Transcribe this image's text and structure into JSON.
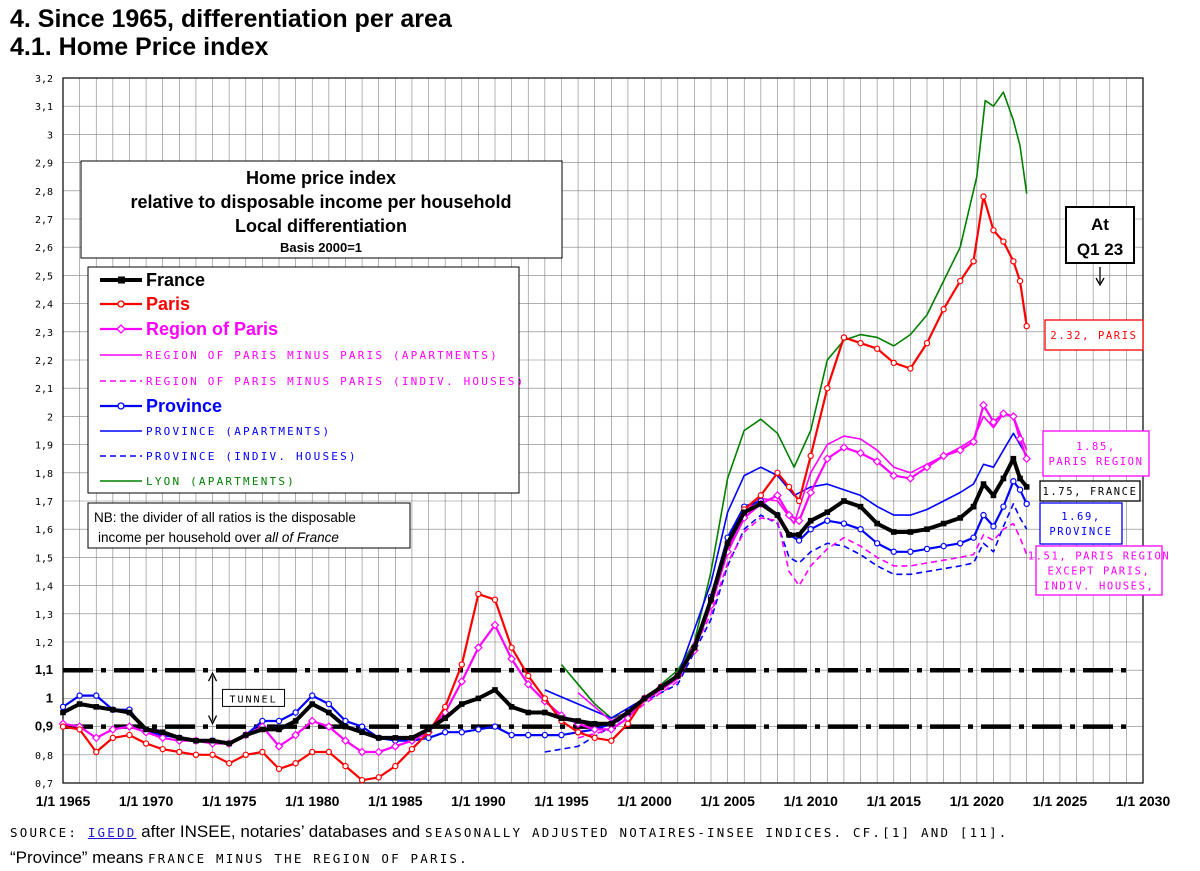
{
  "page": {
    "heading": "4. Since 1965, differentiation per area",
    "subheading": "4.1. Home Price index",
    "source_prefix": "SOURCE: ",
    "source_link": "IGEDD",
    "source_middle": " after INSEE, notaries’ databases and ",
    "source_tail": "SEASONALLY ADJUSTED NOTAIRES-INSEE INDICES. CF.[1] AND [11].",
    "province_note_prefix": "“Province” means ",
    "province_note_tail": "FRANCE MINUS THE REGION OF PARIS."
  },
  "chart_data": {
    "type": "line",
    "title": "Home price index",
    "title_lines": [
      "Home price index",
      "relative to disposable income per household",
      "Local differentiation"
    ],
    "basis": "Basis 2000=1",
    "note": [
      "NB: the divider of all ratios is the disposable",
      "income per household over ",
      "all of France"
    ],
    "xlim": [
      1965,
      2030
    ],
    "ylim": [
      0.7,
      3.2
    ],
    "x_ticks": [
      {
        "x": 1965,
        "label": "1/1 1965"
      },
      {
        "x": 1970,
        "label": "1/1 1970"
      },
      {
        "x": 1975,
        "label": "1/1 1975"
      },
      {
        "x": 1980,
        "label": "1/1 1980"
      },
      {
        "x": 1985,
        "label": "1/1 1985"
      },
      {
        "x": 1990,
        "label": "1/1 1990"
      },
      {
        "x": 1995,
        "label": "1/1 1995"
      },
      {
        "x": 2000,
        "label": "1/1 2000"
      },
      {
        "x": 2005,
        "label": "1/1 2005"
      },
      {
        "x": 2010,
        "label": "1/1 2010"
      },
      {
        "x": 2015,
        "label": "1/1 2015"
      },
      {
        "x": 2020,
        "label": "1/1 2020"
      },
      {
        "x": 2025,
        "label": "1/1 2025"
      },
      {
        "x": 2030,
        "label": "1/1 2030"
      }
    ],
    "y_ticks": [
      {
        "y": 0.7,
        "label": "0,7"
      },
      {
        "y": 0.8,
        "label": "0,8"
      },
      {
        "y": 0.9,
        "label": "0,9"
      },
      {
        "y": 1.0,
        "label": "1"
      },
      {
        "y": 1.1,
        "label": "1,1"
      },
      {
        "y": 1.2,
        "label": "1,2"
      },
      {
        "y": 1.3,
        "label": "1,3"
      },
      {
        "y": 1.4,
        "label": "1,4"
      },
      {
        "y": 1.5,
        "label": "1,5"
      },
      {
        "y": 1.6,
        "label": "1,6"
      },
      {
        "y": 1.7,
        "label": "1,7"
      },
      {
        "y": 1.8,
        "label": "1,8"
      },
      {
        "y": 1.9,
        "label": "1,9"
      },
      {
        "y": 2.0,
        "label": "2"
      },
      {
        "y": 2.1,
        "label": "2,1"
      },
      {
        "y": 2.2,
        "label": "2,2"
      },
      {
        "y": 2.3,
        "label": "2,3"
      },
      {
        "y": 2.4,
        "label": "2,4"
      },
      {
        "y": 2.5,
        "label": "2,5"
      },
      {
        "y": 2.6,
        "label": "2,6"
      },
      {
        "y": 2.7,
        "label": "2,7"
      },
      {
        "y": 2.8,
        "label": "2,8"
      },
      {
        "y": 2.9,
        "label": "2,9"
      },
      {
        "y": 3.0,
        "label": "3"
      },
      {
        "y": 3.1,
        "label": "3,1"
      },
      {
        "y": 3.2,
        "label": "3,2"
      }
    ],
    "bold_y_ticks": [
      0.9,
      1.0,
      1.1
    ],
    "tunnel": {
      "label": "TUNNEL",
      "lower": 0.9,
      "upper": 1.1,
      "x_start": 1965,
      "x_end": 2029
    },
    "at_label": [
      "At",
      "Q1 23"
    ],
    "series": [
      {
        "key": "france",
        "name": "France",
        "color": "#000000",
        "style": "bold",
        "marker": "square",
        "x": [
          1965,
          1966,
          1967,
          1968,
          1969,
          1970,
          1971,
          1972,
          1973,
          1974,
          1975,
          1976,
          1977,
          1978,
          1979,
          1980,
          1981,
          1982,
          1983,
          1984,
          1985,
          1986,
          1987,
          1988,
          1989,
          1990,
          1991,
          1992,
          1993,
          1994,
          1995,
          1996,
          1997,
          1998,
          1999,
          2000,
          2001,
          2002,
          2003,
          2004,
          2005,
          2006,
          2007,
          2008,
          2008.7,
          2009.3,
          2010,
          2011,
          2012,
          2013,
          2014,
          2015,
          2016,
          2017,
          2018,
          2019,
          2019.8,
          2020.4,
          2021,
          2021.6,
          2022.2,
          2022.6,
          2023
        ],
        "y": [
          0.95,
          0.98,
          0.97,
          0.96,
          0.95,
          0.89,
          0.88,
          0.86,
          0.85,
          0.85,
          0.84,
          0.87,
          0.89,
          0.89,
          0.92,
          0.98,
          0.95,
          0.9,
          0.88,
          0.86,
          0.86,
          0.86,
          0.89,
          0.93,
          0.98,
          1.0,
          1.03,
          0.97,
          0.95,
          0.95,
          0.93,
          0.92,
          0.91,
          0.91,
          0.95,
          1.0,
          1.04,
          1.08,
          1.18,
          1.35,
          1.55,
          1.66,
          1.69,
          1.65,
          1.58,
          1.58,
          1.63,
          1.66,
          1.7,
          1.68,
          1.62,
          1.59,
          1.59,
          1.6,
          1.62,
          1.64,
          1.68,
          1.76,
          1.72,
          1.78,
          1.85,
          1.78,
          1.75
        ]
      },
      {
        "key": "paris",
        "name": "Paris",
        "color": "#ff0000",
        "style": "normal",
        "marker": "circle",
        "x": [
          1965,
          1966,
          1967,
          1968,
          1969,
          1970,
          1971,
          1972,
          1973,
          1974,
          1975,
          1976,
          1977,
          1978,
          1979,
          1980,
          1981,
          1982,
          1983,
          1984,
          1985,
          1986,
          1987,
          1988,
          1989,
          1990,
          1991,
          1992,
          1993,
          1994,
          1995,
          1996,
          1997,
          1998,
          1999,
          2000,
          2001,
          2002,
          2003,
          2004,
          2005,
          2006,
          2007,
          2008,
          2008.7,
          2009.3,
          2010,
          2011,
          2012,
          2013,
          2014,
          2015,
          2016,
          2017,
          2018,
          2019,
          2019.8,
          2020.4,
          2021,
          2021.6,
          2022.2,
          2022.6,
          2023
        ],
        "y": [
          0.9,
          0.89,
          0.81,
          0.86,
          0.87,
          0.84,
          0.82,
          0.81,
          0.8,
          0.8,
          0.77,
          0.8,
          0.81,
          0.75,
          0.77,
          0.81,
          0.81,
          0.76,
          0.71,
          0.72,
          0.76,
          0.82,
          0.88,
          0.97,
          1.12,
          1.37,
          1.35,
          1.18,
          1.08,
          1.0,
          0.92,
          0.88,
          0.86,
          0.85,
          0.91,
          1.0,
          1.04,
          1.08,
          1.18,
          1.35,
          1.55,
          1.67,
          1.72,
          1.8,
          1.75,
          1.7,
          1.86,
          2.1,
          2.28,
          2.26,
          2.24,
          2.19,
          2.17,
          2.26,
          2.38,
          2.48,
          2.55,
          2.78,
          2.66,
          2.62,
          2.55,
          2.48,
          2.32
        ]
      },
      {
        "key": "region_paris",
        "name": "Region of Paris",
        "color": "#ff00ff",
        "style": "normal",
        "marker": "diamond",
        "x": [
          1965,
          1966,
          1967,
          1968,
          1969,
          1970,
          1971,
          1972,
          1973,
          1974,
          1975,
          1976,
          1977,
          1978,
          1979,
          1980,
          1981,
          1982,
          1983,
          1984,
          1985,
          1986,
          1987,
          1988,
          1989,
          1990,
          1991,
          1992,
          1993,
          1994,
          1995,
          1996,
          1997,
          1998,
          1999,
          2000,
          2001,
          2002,
          2003,
          2004,
          2005,
          2006,
          2007,
          2008,
          2008.7,
          2009.3,
          2010,
          2011,
          2012,
          2013,
          2014,
          2015,
          2016,
          2017,
          2018,
          2019,
          2019.8,
          2020.4,
          2021,
          2021.6,
          2022.2,
          2022.6,
          2023
        ],
        "y": [
          0.91,
          0.9,
          0.86,
          0.89,
          0.9,
          0.88,
          0.86,
          0.85,
          0.85,
          0.84,
          0.84,
          0.87,
          0.9,
          0.83,
          0.87,
          0.92,
          0.9,
          0.85,
          0.81,
          0.81,
          0.83,
          0.85,
          0.88,
          0.95,
          1.06,
          1.18,
          1.26,
          1.14,
          1.05,
          0.99,
          0.94,
          0.91,
          0.89,
          0.89,
          0.93,
          1.0,
          1.04,
          1.08,
          1.17,
          1.33,
          1.52,
          1.64,
          1.69,
          1.72,
          1.65,
          1.63,
          1.73,
          1.85,
          1.89,
          1.87,
          1.84,
          1.79,
          1.78,
          1.82,
          1.86,
          1.88,
          1.91,
          2.04,
          1.98,
          2.01,
          2.0,
          1.92,
          1.85
        ]
      },
      {
        "key": "rp_apart",
        "name": "REGION OF PARIS MINUS PARIS (APARTMENTS)",
        "color": "#ff00ff",
        "style": "thin",
        "x": [
          1996,
          1998,
          2000,
          2002,
          2004,
          2005,
          2006,
          2007,
          2008,
          2009,
          2010,
          2011,
          2012,
          2013,
          2014,
          2015,
          2016,
          2017,
          2018,
          2019,
          2019.8,
          2020.4,
          2021,
          2021.6,
          2022.2,
          2022.6,
          2023
        ],
        "y": [
          1.02,
          0.92,
          0.99,
          1.07,
          1.33,
          1.53,
          1.66,
          1.71,
          1.7,
          1.62,
          1.8,
          1.9,
          1.93,
          1.92,
          1.88,
          1.82,
          1.8,
          1.83,
          1.86,
          1.89,
          1.92,
          2.0,
          1.96,
          2.01,
          2.0,
          1.94,
          1.88
        ]
      },
      {
        "key": "rp_houses",
        "name": "REGION OF PARIS MINUS PARIS (INDIV. HOUSES)",
        "color": "#ff00ff",
        "style": "dashed",
        "x": [
          1996,
          1998,
          2000,
          2002,
          2004,
          2005,
          2006,
          2007,
          2008,
          2008.7,
          2009.3,
          2010,
          2011,
          2012,
          2013,
          2014,
          2015,
          2016,
          2017,
          2018,
          2019,
          2019.8,
          2020.4,
          2021,
          2021.6,
          2022.2,
          2022.6,
          2023
        ],
        "y": [
          0.86,
          0.89,
          0.98,
          1.06,
          1.3,
          1.48,
          1.59,
          1.64,
          1.63,
          1.45,
          1.4,
          1.47,
          1.53,
          1.57,
          1.54,
          1.5,
          1.47,
          1.47,
          1.48,
          1.49,
          1.5,
          1.51,
          1.58,
          1.56,
          1.6,
          1.62,
          1.57,
          1.51
        ]
      },
      {
        "key": "province",
        "name": "Province",
        "color": "#0000ff",
        "style": "normal",
        "marker": "circle",
        "x": [
          1965,
          1966,
          1967,
          1968,
          1969,
          1970,
          1971,
          1972,
          1973,
          1974,
          1975,
          1976,
          1977,
          1978,
          1979,
          1980,
          1981,
          1982,
          1983,
          1984,
          1985,
          1986,
          1987,
          1988,
          1989,
          1990,
          1991,
          1992,
          1993,
          1994,
          1995,
          1996,
          1997,
          1998,
          1999,
          2000,
          2001,
          2002,
          2003,
          2004,
          2005,
          2006,
          2007,
          2008,
          2008.7,
          2009.3,
          2010,
          2011,
          2012,
          2013,
          2014,
          2015,
          2016,
          2017,
          2018,
          2019,
          2019.8,
          2020.4,
          2021,
          2021.6,
          2022.2,
          2022.6,
          2023
        ],
        "y": [
          0.97,
          1.01,
          1.01,
          0.96,
          0.96,
          0.88,
          0.87,
          0.86,
          0.85,
          0.85,
          0.84,
          0.87,
          0.92,
          0.92,
          0.95,
          1.01,
          0.98,
          0.92,
          0.9,
          0.86,
          0.85,
          0.85,
          0.86,
          0.88,
          0.88,
          0.89,
          0.9,
          0.87,
          0.87,
          0.87,
          0.87,
          0.88,
          0.89,
          0.91,
          0.95,
          1.0,
          1.04,
          1.08,
          1.18,
          1.36,
          1.57,
          1.68,
          1.7,
          1.65,
          1.58,
          1.56,
          1.6,
          1.63,
          1.62,
          1.6,
          1.55,
          1.52,
          1.52,
          1.53,
          1.54,
          1.55,
          1.57,
          1.65,
          1.61,
          1.68,
          1.77,
          1.74,
          1.69
        ]
      },
      {
        "key": "prov_apart",
        "name": "PROVINCE (APARTMENTS)",
        "color": "#0000ff",
        "style": "thin",
        "x": [
          1994,
          1996,
          1998,
          2000,
          2002,
          2004,
          2005,
          2006,
          2007,
          2008,
          2009,
          2010,
          2011,
          2012,
          2013,
          2014,
          2015,
          2016,
          2017,
          2018,
          2019,
          2019.8,
          2020.4,
          2021,
          2021.6,
          2022.2,
          2022.6,
          2023
        ],
        "y": [
          1.03,
          0.98,
          0.93,
          1.0,
          1.08,
          1.41,
          1.66,
          1.79,
          1.82,
          1.79,
          1.72,
          1.75,
          1.76,
          1.74,
          1.72,
          1.68,
          1.65,
          1.65,
          1.67,
          1.7,
          1.73,
          1.76,
          1.83,
          1.82,
          1.88,
          1.94,
          1.9,
          1.86
        ]
      },
      {
        "key": "prov_houses",
        "name": "PROVINCE (INDIV. HOUSES)",
        "color": "#0000ff",
        "style": "dashed",
        "x": [
          1994,
          1996,
          1998,
          2000,
          2002,
          2004,
          2005,
          2006,
          2007,
          2008,
          2008.7,
          2009.3,
          2010,
          2011,
          2012,
          2013,
          2014,
          2015,
          2016,
          2017,
          2018,
          2019,
          2019.8,
          2020.4,
          2021,
          2021.6,
          2022.2,
          2022.6,
          2023
        ],
        "y": [
          0.81,
          0.83,
          0.9,
          0.99,
          1.05,
          1.28,
          1.47,
          1.6,
          1.65,
          1.62,
          1.5,
          1.48,
          1.52,
          1.55,
          1.54,
          1.51,
          1.47,
          1.44,
          1.44,
          1.45,
          1.46,
          1.47,
          1.48,
          1.55,
          1.52,
          1.61,
          1.69,
          1.64,
          1.6
        ]
      },
      {
        "key": "lyon",
        "name": "LYON (APARTMENTS)",
        "color": "#008000",
        "style": "thin",
        "x": [
          1995,
          1996,
          1997,
          1998,
          1999,
          2000,
          2001,
          2002,
          2003,
          2004,
          2005,
          2006,
          2007,
          2008,
          2009,
          2010,
          2011,
          2012,
          2013,
          2014,
          2015,
          2016,
          2017,
          2018,
          2019,
          2020,
          2020.5,
          2021,
          2021.6,
          2022.2,
          2022.6,
          2023
        ],
        "y": [
          1.12,
          1.05,
          0.98,
          0.93,
          0.95,
          0.99,
          1.05,
          1.1,
          1.2,
          1.45,
          1.78,
          1.95,
          1.99,
          1.94,
          1.82,
          1.95,
          2.2,
          2.27,
          2.29,
          2.28,
          2.25,
          2.29,
          2.36,
          2.48,
          2.6,
          2.85,
          3.12,
          3.1,
          3.15,
          3.05,
          2.96,
          2.79
        ]
      }
    ],
    "end_labels": [
      {
        "key": "paris",
        "text": "2.32, PARIS",
        "color": "#ff0000",
        "value": 2.32
      },
      {
        "key": "region_paris",
        "text1": "1.85,",
        "text2": "PARIS REGION",
        "color": "#ff00ff",
        "value": 1.85
      },
      {
        "key": "france",
        "text": "1.75, FRANCE",
        "color": "#000000",
        "value": 1.75
      },
      {
        "key": "province",
        "text1": "1.69,",
        "text2": "PROVINCE",
        "color": "#0000ff",
        "value": 1.69
      },
      {
        "key": "rp_houses",
        "text1": "1.51, PARIS REGION",
        "text2": "EXCEPT PARIS,",
        "text3": "INDIV. HOUSES,",
        "color": "#ff00ff",
        "value": 1.51
      }
    ],
    "colors": {
      "grid": "#808080",
      "frame": "#000000"
    }
  }
}
